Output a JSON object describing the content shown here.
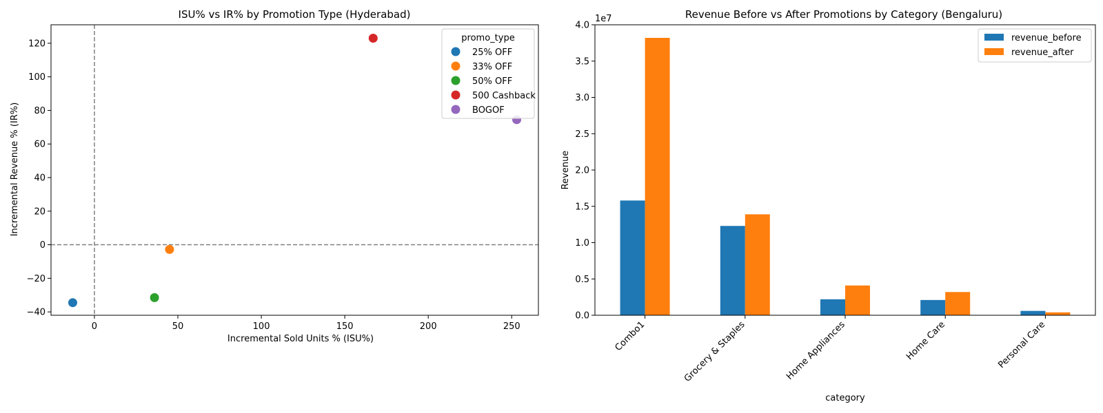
{
  "chart_data": [
    {
      "type": "scatter",
      "title": "ISU% vs IR% by Promotion Type (Hyderabad)",
      "xlabel": "Incremental Sold Units % (ISU%)",
      "ylabel": "Incremental Revenue % (IR%)",
      "xlim": [
        -26,
        266
      ],
      "ylim": [
        -42,
        131
      ],
      "xticks": [
        0,
        50,
        100,
        150,
        200,
        250
      ],
      "yticks": [
        -40,
        -20,
        0,
        20,
        40,
        60,
        80,
        100,
        120
      ],
      "xtick_labels": [
        "0",
        "50",
        "100",
        "150",
        "200",
        "250"
      ],
      "ytick_labels": [
        "−40",
        "−20",
        "0",
        "20",
        "40",
        "60",
        "80",
        "100",
        "120"
      ],
      "reference_lines": {
        "x": 0,
        "y": 0,
        "style": "dashed",
        "color": "#808080"
      },
      "grid": false,
      "legend": {
        "title": "promo_type",
        "position": "top-right"
      },
      "series": [
        {
          "name": "25% OFF",
          "color": "#1f77b4",
          "x": [
            -13
          ],
          "y": [
            -34.5
          ]
        },
        {
          "name": "33% OFF",
          "color": "#ff7f0e",
          "x": [
            45
          ],
          "y": [
            -2.8
          ]
        },
        {
          "name": "50% OFF",
          "color": "#2ca02c",
          "x": [
            36
          ],
          "y": [
            -31.5
          ]
        },
        {
          "name": "500 Cashback",
          "color": "#d62728",
          "x": [
            167
          ],
          "y": [
            123
          ]
        },
        {
          "name": "BOGOF",
          "color": "#9467bd",
          "x": [
            253
          ],
          "y": [
            74.5
          ]
        }
      ]
    },
    {
      "type": "bar",
      "title": "Revenue Before vs After Promotions by Category (Bengaluru)",
      "xlabel": "category",
      "ylabel": "Revenue",
      "ylim": [
        0,
        4.0
      ],
      "y_scale_note": "1e7",
      "yticks": [
        0,
        0.5,
        1.0,
        1.5,
        2.0,
        2.5,
        3.0,
        3.5,
        4.0
      ],
      "ytick_labels": [
        "0.0",
        "0.5",
        "1.0",
        "1.5",
        "2.0",
        "2.5",
        "3.0",
        "3.5",
        "4.0"
      ],
      "categories": [
        "Combo1",
        "Grocery & Staples",
        "Home Appliances",
        "Home Care",
        "Personal Care"
      ],
      "grid": false,
      "legend": {
        "position": "top-right"
      },
      "series": [
        {
          "name": "revenue_before",
          "color": "#1f77b4",
          "values": [
            1.58,
            1.23,
            0.22,
            0.21,
            0.06
          ]
        },
        {
          "name": "revenue_after",
          "color": "#ff7f0e",
          "values": [
            3.82,
            1.39,
            0.41,
            0.32,
            0.04
          ]
        }
      ]
    }
  ]
}
